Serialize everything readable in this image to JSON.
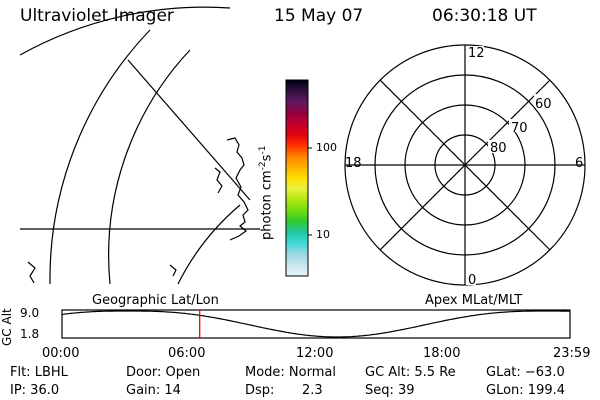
{
  "header": {
    "title": "Ultraviolet Imager",
    "date": "15 May 07",
    "time": "06:30:18 UT"
  },
  "colorbar": {
    "unit_label": "photon cm",
    "unit_exp1": "-2",
    "unit_mid": "s",
    "unit_exp2": "-1",
    "tick_100": "100",
    "tick_10": "10",
    "stops": [
      "#e6f4f8",
      "#c8e6ee",
      "#9cd8e4",
      "#40d8d8",
      "#20c8a0",
      "#30c830",
      "#70dc10",
      "#b0e810",
      "#e8f040",
      "#ffe000",
      "#ffb000",
      "#ff8000",
      "#ff3000",
      "#e00010",
      "#c00030",
      "#900040",
      "#601860",
      "#301040",
      "#000010"
    ]
  },
  "map_labels": {
    "geographic": "Geographic Lat/Lon",
    "apex": "Apex MLat/MLT"
  },
  "polar": {
    "mlt": {
      "top": "12",
      "left": "18",
      "right": "6",
      "bottom": "0"
    },
    "mlat": [
      "60",
      "70",
      "80"
    ]
  },
  "timeline": {
    "ylabel": "GC Alt",
    "ymax": "9.0",
    "ymin": "1.8",
    "ticks": [
      "00:00",
      "06:00",
      "12:00",
      "18:00",
      "23:59"
    ],
    "current_time_hours": 6.505
  },
  "footer": {
    "row1": {
      "filter": "Flt: LBHL",
      "door": "Door: Open",
      "mode": "Mode: Normal",
      "gcalt": "GC Alt: 5.5 Re",
      "glat": "GLat: −63.0"
    },
    "row2": {
      "ip": "IP: 36.0",
      "gain": "Gain: 14",
      "dsp_label": "Dsp:",
      "dsp_value": "2.3",
      "seq": "Seq: 39",
      "glon": "GLon: 199.4"
    }
  },
  "colors": {
    "marker": "#ff0000",
    "line": "#000000"
  }
}
